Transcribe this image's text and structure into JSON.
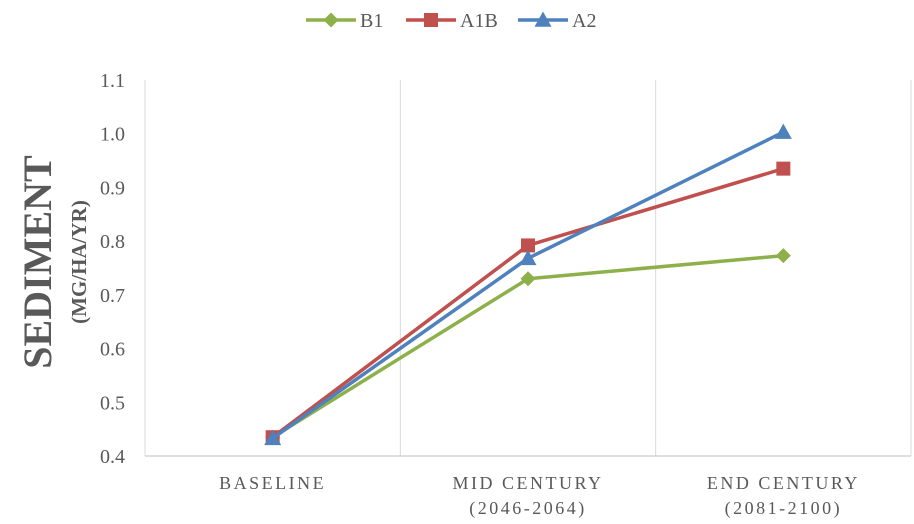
{
  "chart_data": {
    "type": "line",
    "categories": [
      [
        "BASELINE"
      ],
      [
        "MID CENTURY",
        "(2046-2064)"
      ],
      [
        "END CENTURY",
        "(2081-2100)"
      ]
    ],
    "series": [
      {
        "name": "B1",
        "values": [
          0.435,
          0.73,
          0.773
        ],
        "color": "#8db04a",
        "marker": "diamond"
      },
      {
        "name": "A1B",
        "values": [
          0.435,
          0.792,
          0.935
        ],
        "color": "#c0504d",
        "marker": "square"
      },
      {
        "name": "A2",
        "values": [
          0.433,
          0.768,
          1.003
        ],
        "color": "#4f81bd",
        "marker": "triangle"
      }
    ],
    "ylabel": "SEDIMENT",
    "ylabel_unit": "(MG/HA/YR)",
    "ylim": [
      0.4,
      1.1
    ],
    "yticks": [
      "0.4",
      "0.5",
      "0.6",
      "0.7",
      "0.8",
      "0.9",
      "1.0",
      "1.1"
    ],
    "grid": "vertical",
    "legend_position": "top-center"
  }
}
